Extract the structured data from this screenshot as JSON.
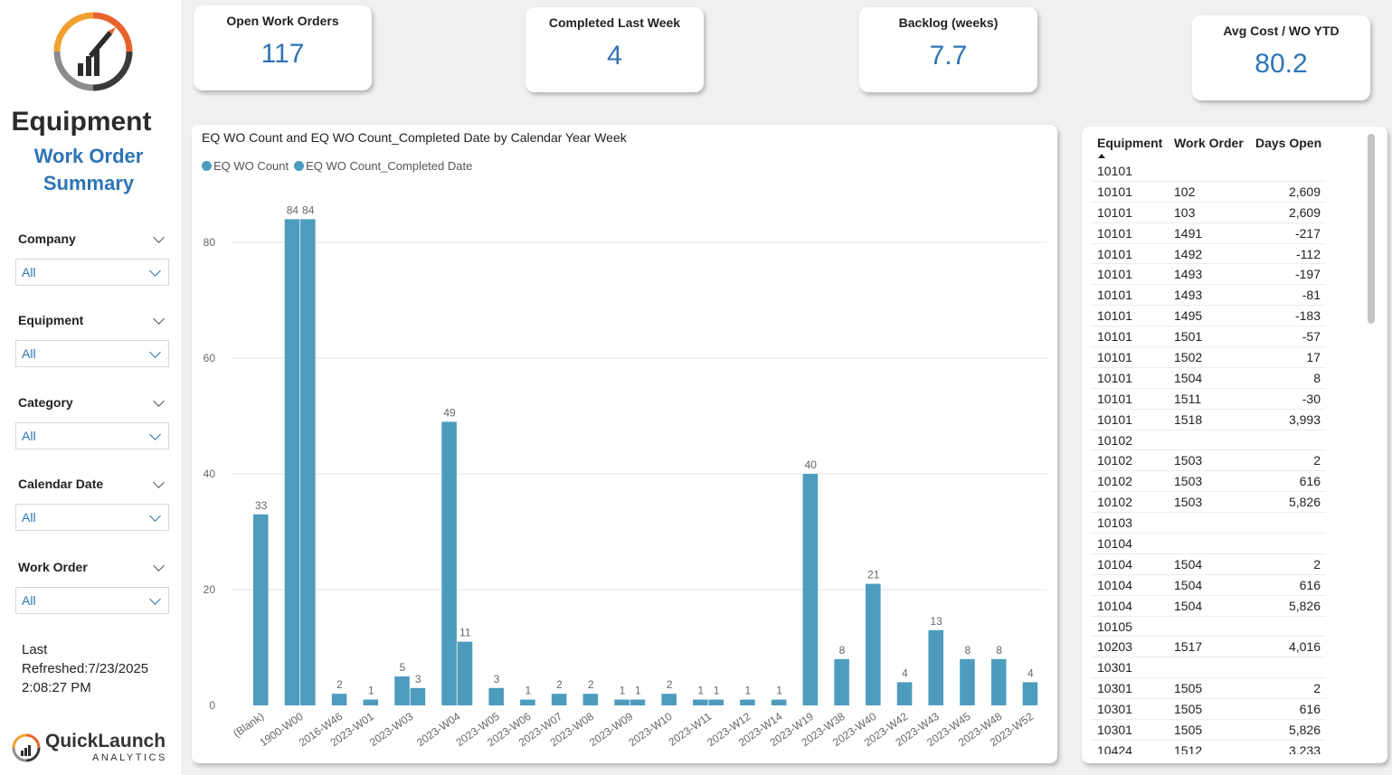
{
  "sidebar": {
    "title_line1": "Equipment",
    "title_line2": "Work Order",
    "title_line3": "Summary",
    "filters": [
      {
        "label": "Company",
        "value": "All"
      },
      {
        "label": "Equipment",
        "value": "All"
      },
      {
        "label": "Category",
        "value": "All"
      },
      {
        "label": "Calendar Date",
        "value": "All"
      },
      {
        "label": "Work Order",
        "value": "All"
      }
    ],
    "refresh_label": "Last",
    "refresh_value": "Refreshed:7/23/2025",
    "refresh_time": "2:08:27 PM",
    "brand_name": "QuickLaunch",
    "brand_sub": "ANALYTICS"
  },
  "kpis": [
    {
      "label": "Open Work Orders",
      "value": "117"
    },
    {
      "label": "Completed Last Week",
      "value": "4"
    },
    {
      "label": "Backlog (weeks)",
      "value": "7.7"
    },
    {
      "label": "Avg Cost / WO YTD",
      "value": "80.2"
    }
  ],
  "colors": {
    "bar": "#4d9bbd",
    "accent": "#2e74b5",
    "logo_orange": "#e8632c",
    "logo_gray": "#8c8c8c"
  },
  "chart_data": {
    "type": "bar",
    "title": "EQ WO Count and EQ WO Count_Completed Date by Calendar Year Week",
    "legend": [
      "EQ WO Count",
      "EQ WO Count_Completed Date"
    ],
    "legend_position": "top-left",
    "ylim": [
      0,
      85
    ],
    "yticks": [
      0,
      20,
      40,
      60,
      80
    ],
    "grid": true,
    "xtick_labels": [
      "(Blank)",
      "1900-W00",
      "2016-W46",
      "2023-W01",
      "2023-W03",
      "2023-W04",
      "2023-W05",
      "2023-W06",
      "2023-W07",
      "2023-W08",
      "2023-W09",
      "2023-W10",
      "2023-W11",
      "2023-W12",
      "2023-W14",
      "2023-W19",
      "2023-W38",
      "2023-W40",
      "2023-W42",
      "2023-W43",
      "2023-W45",
      "2023-W48",
      "2023-W52"
    ],
    "bars": [
      {
        "category": "(Blank)",
        "series": "EQ WO Count",
        "value": 33
      },
      {
        "category": "1900-W00",
        "series": "EQ WO Count",
        "value": 84
      },
      {
        "category": "1900-W00",
        "series": "EQ WO Count_Completed Date",
        "value": 84
      },
      {
        "category": "2016-W46",
        "series": "EQ WO Count",
        "value": 2
      },
      {
        "category": "2023-W01",
        "series": "EQ WO Count",
        "value": 1
      },
      {
        "category": "2023-W03",
        "series": "EQ WO Count",
        "value": 5
      },
      {
        "category": "2023-W03",
        "series": "EQ WO Count_Completed Date",
        "value": 3
      },
      {
        "category": "2023-W04",
        "series": "EQ WO Count",
        "value": 49
      },
      {
        "category": "2023-W04",
        "series": "EQ WO Count_Completed Date",
        "value": 11
      },
      {
        "category": "2023-W05",
        "series": "EQ WO Count",
        "value": 3
      },
      {
        "category": "2023-W06",
        "series": "EQ WO Count",
        "value": 1
      },
      {
        "category": "2023-W07",
        "series": "EQ WO Count",
        "value": 2
      },
      {
        "category": "2023-W08",
        "series": "EQ WO Count",
        "value": 2
      },
      {
        "category": "2023-W09",
        "series": "EQ WO Count",
        "value": 1
      },
      {
        "category": "2023-W09",
        "series": "EQ WO Count_Completed Date",
        "value": 1
      },
      {
        "category": "2023-W10",
        "series": "EQ WO Count",
        "value": 2
      },
      {
        "category": "2023-W11",
        "series": "EQ WO Count",
        "value": 1
      },
      {
        "category": "2023-W11",
        "series": "EQ WO Count_Completed Date",
        "value": 1
      },
      {
        "category": "2023-W12",
        "series": "EQ WO Count",
        "value": 1
      },
      {
        "category": "2023-W14",
        "series": "EQ WO Count",
        "value": 1
      },
      {
        "category": "2023-W19",
        "series": "EQ WO Count",
        "value": 40
      },
      {
        "category": "2023-W38",
        "series": "EQ WO Count",
        "value": 8
      },
      {
        "category": "2023-W40",
        "series": "EQ WO Count",
        "value": 21
      },
      {
        "category": "2023-W42",
        "series": "EQ WO Count",
        "value": 4
      },
      {
        "category": "2023-W43",
        "series": "EQ WO Count",
        "value": 13
      },
      {
        "category": "2023-W45",
        "series": "EQ WO Count",
        "value": 8
      },
      {
        "category": "2023-W48",
        "series": "EQ WO Count",
        "value": 8
      },
      {
        "category": "2023-W52",
        "series": "EQ WO Count",
        "value": 4
      }
    ]
  },
  "table": {
    "headers": [
      "Equipment",
      "Work Order",
      "Days Open"
    ],
    "rows": [
      [
        "10101",
        "",
        ""
      ],
      [
        "10101",
        "102",
        "2,609"
      ],
      [
        "10101",
        "103",
        "2,609"
      ],
      [
        "10101",
        "1491",
        "-217"
      ],
      [
        "10101",
        "1492",
        "-112"
      ],
      [
        "10101",
        "1493",
        "-197"
      ],
      [
        "10101",
        "1493",
        "-81"
      ],
      [
        "10101",
        "1495",
        "-183"
      ],
      [
        "10101",
        "1501",
        "-57"
      ],
      [
        "10101",
        "1502",
        "17"
      ],
      [
        "10101",
        "1504",
        "8"
      ],
      [
        "10101",
        "1511",
        "-30"
      ],
      [
        "10101",
        "1518",
        "3,993"
      ],
      [
        "10102",
        "",
        ""
      ],
      [
        "10102",
        "1503",
        "2"
      ],
      [
        "10102",
        "1503",
        "616"
      ],
      [
        "10102",
        "1503",
        "5,826"
      ],
      [
        "10103",
        "",
        ""
      ],
      [
        "10104",
        "",
        ""
      ],
      [
        "10104",
        "1504",
        "2"
      ],
      [
        "10104",
        "1504",
        "616"
      ],
      [
        "10104",
        "1504",
        "5,826"
      ],
      [
        "10105",
        "",
        ""
      ],
      [
        "10203",
        "1517",
        "4,016"
      ],
      [
        "10301",
        "",
        ""
      ],
      [
        "10301",
        "1505",
        "2"
      ],
      [
        "10301",
        "1505",
        "616"
      ],
      [
        "10301",
        "1505",
        "5,826"
      ],
      [
        "10424",
        "1512",
        "3,233"
      ]
    ]
  }
}
